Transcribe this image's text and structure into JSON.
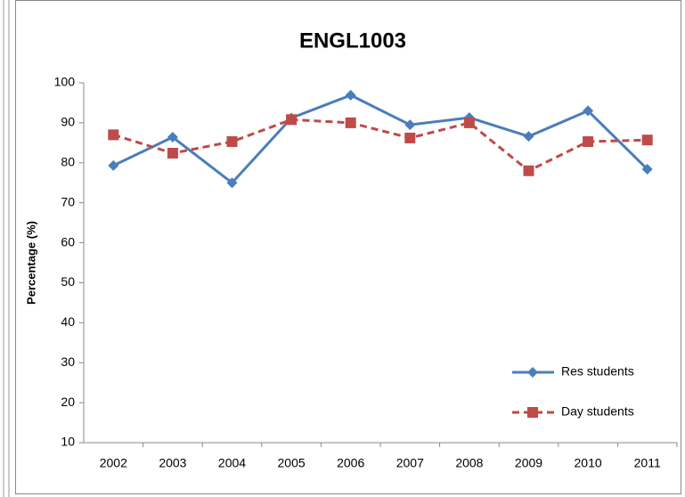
{
  "chart_data": {
    "type": "line",
    "title": "ENGL1003",
    "y_label": "Percentage (%)",
    "categories": [
      "2002",
      "2003",
      "2004",
      "2005",
      "2006",
      "2007",
      "2008",
      "2009",
      "2010",
      "2011"
    ],
    "series": [
      {
        "name": "Res students",
        "color": "#4a7ebb",
        "marker": "diamond",
        "dash": "solid",
        "values": [
          79.3,
          86.4,
          75,
          91.2,
          96.9,
          89.5,
          91.3,
          86.6,
          93,
          78.4
        ]
      },
      {
        "name": "Day students",
        "color": "#be4b48",
        "marker": "square",
        "dash": "dashed",
        "values": [
          87,
          82.4,
          85.3,
          90.8,
          90,
          86.2,
          90,
          78,
          85.3,
          85.7
        ]
      }
    ],
    "ylim": [
      10,
      100
    ],
    "yticks": [
      10,
      20,
      30,
      40,
      50,
      60,
      70,
      80,
      90,
      100
    ],
    "grid": false,
    "legend": "lower right"
  }
}
